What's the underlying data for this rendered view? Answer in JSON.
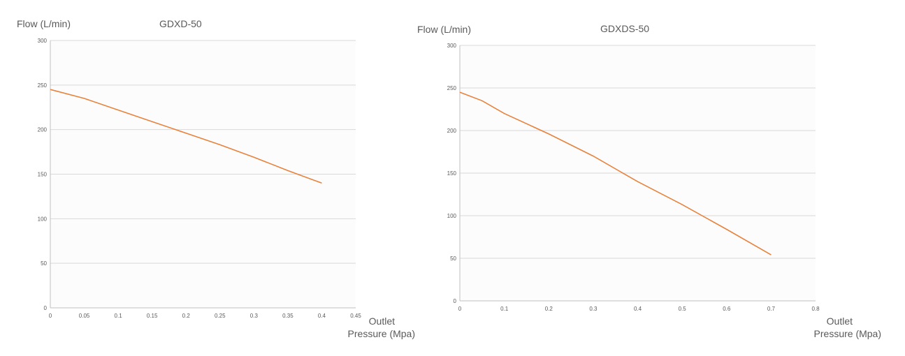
{
  "colors": {
    "series": "#E8823C",
    "grid": "#d9d9d9",
    "text": "#595959"
  },
  "chart_data": [
    {
      "type": "line",
      "title": "GDXD-50",
      "ylabel": "Flow (L/min)",
      "xlabel_line1": "Outlet",
      "xlabel_line2": "Pressure (Mpa)",
      "xlim": [
        0,
        0.45
      ],
      "ylim": [
        0,
        300
      ],
      "x_ticks": [
        0,
        0.05,
        0.1,
        0.15,
        0.2,
        0.25,
        0.3,
        0.35,
        0.4,
        0.45
      ],
      "x_tick_labels": [
        "0",
        "0.05",
        "0.1",
        "0.15",
        "0.2",
        "0.25",
        "0.3",
        "0.35",
        "0.4",
        "0.45"
      ],
      "y_ticks": [
        0,
        50,
        100,
        150,
        200,
        250,
        300
      ],
      "y_tick_labels": [
        "0",
        "50",
        "100",
        "150",
        "200",
        "250",
        "300"
      ],
      "grid": true,
      "series": [
        {
          "x": [
            0,
            0.05,
            0.1,
            0.15,
            0.2,
            0.25,
            0.3,
            0.35,
            0.4
          ],
          "y": [
            245,
            235,
            222,
            209,
            196,
            183,
            169,
            154,
            140
          ]
        }
      ]
    },
    {
      "type": "line",
      "title": "GDXDS-50",
      "ylabel": "Flow (L/min)",
      "xlabel_line1": "Outlet",
      "xlabel_line2": "Pressure (Mpa)",
      "xlim": [
        0,
        0.8
      ],
      "ylim": [
        0,
        300
      ],
      "x_ticks": [
        0,
        0.1,
        0.2,
        0.3,
        0.4,
        0.5,
        0.6,
        0.7,
        0.8
      ],
      "x_tick_labels": [
        "0",
        "0.1",
        "0.2",
        "0.3",
        "0.4",
        "0.5",
        "0.6",
        "0.7",
        "0.8"
      ],
      "y_ticks": [
        0,
        50,
        100,
        150,
        200,
        250,
        300
      ],
      "y_tick_labels": [
        "0",
        "50",
        "100",
        "150",
        "200",
        "250",
        "300"
      ],
      "grid": true,
      "series": [
        {
          "x": [
            0,
            0.05,
            0.1,
            0.2,
            0.3,
            0.4,
            0.5,
            0.6,
            0.7
          ],
          "y": [
            245,
            235,
            220,
            196,
            170,
            140,
            113,
            84,
            54
          ]
        }
      ]
    }
  ]
}
